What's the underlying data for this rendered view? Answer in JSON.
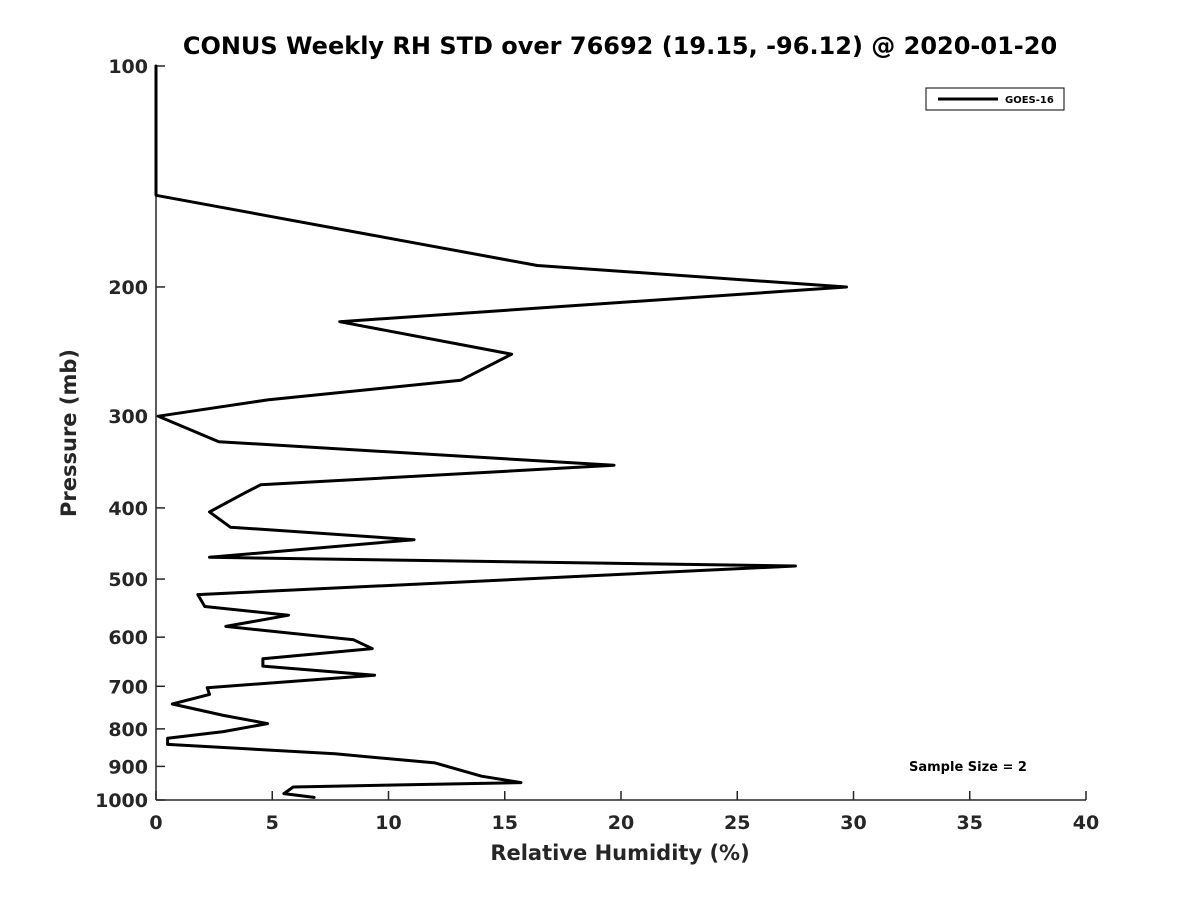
{
  "chart_data": {
    "type": "line",
    "title": "CONUS Weekly RH STD over 76692 (19.15, -96.12) @ 2020-01-20",
    "xlabel": "Relative Humidity (%)",
    "ylabel": "Pressure (mb)",
    "xlim": [
      0,
      40
    ],
    "ylim": [
      100,
      1000
    ],
    "y_scale": "log",
    "y_reversed": true,
    "x_ticks": [
      0,
      5,
      10,
      15,
      20,
      25,
      30,
      35,
      40
    ],
    "x_tick_labels": [
      "0",
      "5",
      "10",
      "15",
      "20",
      "25",
      "30",
      "35",
      "40"
    ],
    "y_ticks": [
      100,
      200,
      300,
      400,
      500,
      600,
      700,
      800,
      900,
      1000
    ],
    "y_tick_labels": [
      "100",
      "200",
      "300",
      "400",
      "500",
      "600",
      "700",
      "800",
      "900",
      "1000"
    ],
    "grid": false,
    "legend_position": "top-right",
    "annotation": "Sample Size = 2",
    "series": [
      {
        "name": "GOES-16",
        "color": "#000000",
        "points": [
          [
            0.0,
            100
          ],
          [
            0.0,
            150
          ],
          [
            9.3,
            170
          ],
          [
            16.4,
            187
          ],
          [
            29.7,
            200
          ],
          [
            7.9,
            223
          ],
          [
            15.3,
            247
          ],
          [
            13.1,
            268
          ],
          [
            4.8,
            285
          ],
          [
            0.1,
            300
          ],
          [
            2.7,
            325
          ],
          [
            19.7,
            350
          ],
          [
            4.5,
            372
          ],
          [
            3.8,
            382
          ],
          [
            2.3,
            405
          ],
          [
            3.2,
            425
          ],
          [
            11.1,
            442
          ],
          [
            2.3,
            467
          ],
          [
            27.5,
            480
          ],
          [
            1.8,
            525
          ],
          [
            2.1,
            545
          ],
          [
            5.7,
            560
          ],
          [
            3.0,
            580
          ],
          [
            8.5,
            605
          ],
          [
            9.3,
            622
          ],
          [
            4.6,
            642
          ],
          [
            4.6,
            657
          ],
          [
            9.4,
            676
          ],
          [
            2.2,
            703
          ],
          [
            2.3,
            718
          ],
          [
            0.7,
            740
          ],
          [
            2.9,
            767
          ],
          [
            4.8,
            787
          ],
          [
            2.9,
            807
          ],
          [
            0.5,
            824
          ],
          [
            0.5,
            840
          ],
          [
            7.7,
            865
          ],
          [
            12.0,
            890
          ],
          [
            14.0,
            928
          ],
          [
            15.7,
            947
          ],
          [
            5.9,
            960
          ],
          [
            5.5,
            980
          ],
          [
            6.8,
            992
          ]
        ]
      }
    ]
  }
}
